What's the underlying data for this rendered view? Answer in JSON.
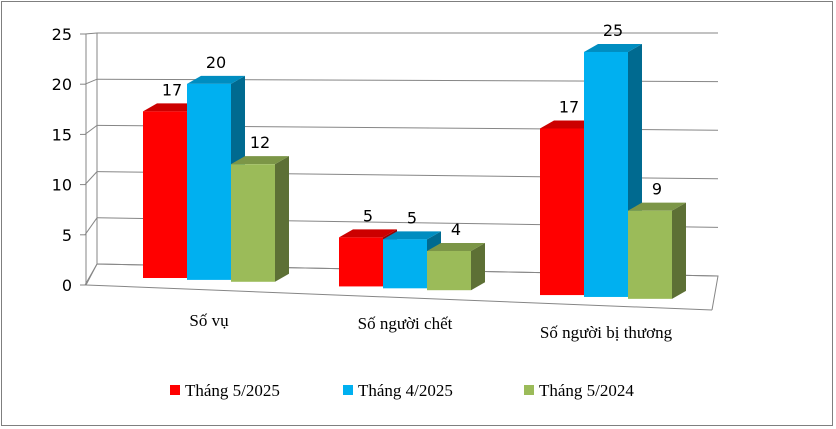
{
  "chart_data": {
    "type": "bar",
    "style": "3d-clustered-column",
    "categories": [
      "Số vụ",
      "Số người chết",
      "Số người bị thương"
    ],
    "series": [
      {
        "name": "Tháng 5/2025",
        "color": "#ff0000",
        "values": [
          17,
          5,
          17
        ]
      },
      {
        "name": "Tháng 4/2025",
        "color": "#00b0f0",
        "values": [
          20,
          5,
          25
        ]
      },
      {
        "name": "Tháng 5/2024",
        "color": "#9bbb59",
        "values": [
          12,
          4,
          9
        ]
      }
    ],
    "ylim": [
      0,
      25
    ],
    "yticks": [
      "0",
      "5",
      "10",
      "15",
      "20",
      "25"
    ],
    "grid": true,
    "legend": "bottom"
  }
}
